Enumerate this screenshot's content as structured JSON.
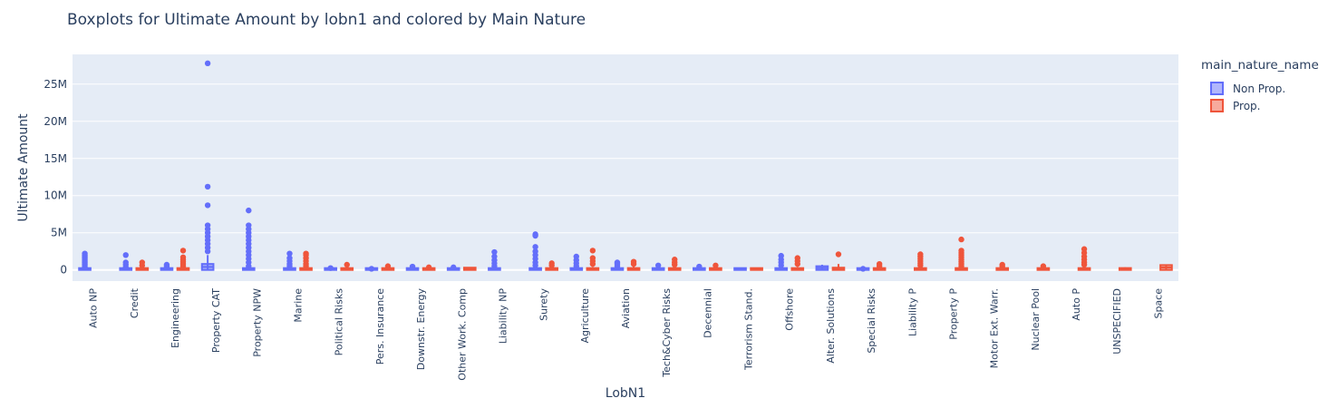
{
  "chart_data": {
    "type": "box",
    "title": "Boxplots for Ultimate Amount by lobn1 and colored by Main Nature",
    "xlabel": "LobN1",
    "ylabel": "Ultimate Amount",
    "ylim": [
      -1500000,
      29000000
    ],
    "yticks": [
      0,
      5000000,
      10000000,
      15000000,
      20000000,
      25000000
    ],
    "ytick_labels": [
      "0",
      "5M",
      "10M",
      "15M",
      "20M",
      "25M"
    ],
    "legend_title": "main_nature_name",
    "legend_position": "right",
    "grid": true,
    "categories": [
      "Auto NP",
      "Credit",
      "Engineering",
      "Property CAT",
      "Property NPW",
      "Marine",
      "Political Risks",
      "Pers. Insurance",
      "Downstr. Energy",
      "Other Work. Comp",
      "Liability NP",
      "Surety",
      "Agriculture",
      "Aviation",
      "Tech&Cyber Risks",
      "Decennial",
      "Terrorism Stand.",
      "Offshore",
      "Alter. Solutions",
      "Special Risks",
      "Liability P",
      "Property P",
      "Motor Ext. Warr.",
      "Nuclear Pool",
      "Auto P",
      "UNSPECIFIED",
      "Space"
    ],
    "series": [
      {
        "name": "Non Prop.",
        "color": "#636efa",
        "boxes": [
          {
            "category": "Auto NP",
            "q1": 0,
            "q3": 50000,
            "upper": 300000,
            "outliers": [
              400000,
              600000,
              800000,
              1000000,
              1200000,
              1400000,
              1600000,
              1800000,
              2000000,
              2200000
            ]
          },
          {
            "category": "Credit",
            "q1": 0,
            "q3": 60000,
            "upper": 200000,
            "outliers": [
              400000,
              700000,
              1000000,
              2000000
            ]
          },
          {
            "category": "Engineering",
            "q1": 0,
            "q3": 60000,
            "upper": 200000,
            "outliers": [
              300000,
              500000,
              700000
            ]
          },
          {
            "category": "Property CAT",
            "q1": 0,
            "q3": 800000,
            "upper": 2000000,
            "outliers": [
              2500000,
              3000000,
              3500000,
              4000000,
              4500000,
              5000000,
              5500000,
              6000000,
              8700000,
              11200000,
              27800000
            ]
          },
          {
            "category": "Property NPW",
            "q1": 0,
            "q3": 50000,
            "upper": 300000,
            "outliers": [
              500000,
              1000000,
              1500000,
              2000000,
              2500000,
              3000000,
              3500000,
              4000000,
              4500000,
              5000000,
              5500000,
              6000000,
              8000000
            ]
          },
          {
            "category": "Marine",
            "q1": 0,
            "q3": 60000,
            "upper": 300000,
            "outliers": [
              500000,
              800000,
              1200000,
              1600000,
              2200000
            ]
          },
          {
            "category": "Political Risks",
            "q1": 0,
            "q3": 50000,
            "upper": 150000,
            "outliers": [
              250000
            ]
          },
          {
            "category": "Pers. Insurance",
            "q1": 0,
            "q3": 30000,
            "upper": 100000,
            "outliers": [
              150000
            ]
          },
          {
            "category": "Downstr. Energy",
            "q1": 0,
            "q3": 50000,
            "upper": 150000,
            "outliers": [
              450000
            ]
          },
          {
            "category": "Other Work. Comp",
            "q1": 0,
            "q3": 50000,
            "upper": 150000,
            "outliers": [
              350000
            ]
          },
          {
            "category": "Liability NP",
            "q1": 0,
            "q3": 60000,
            "upper": 250000,
            "outliers": [
              500000,
              900000,
              1300000,
              1800000,
              2400000
            ]
          },
          {
            "category": "Surety",
            "q1": 0,
            "q3": 60000,
            "upper": 300000,
            "outliers": [
              600000,
              1000000,
              1500000,
              2000000,
              2500000,
              3100000,
              4600000,
              4800000
            ]
          },
          {
            "category": "Agriculture",
            "q1": 0,
            "q3": 60000,
            "upper": 250000,
            "outliers": [
              500000,
              900000,
              1300000,
              1800000
            ]
          },
          {
            "category": "Aviation",
            "q1": 0,
            "q3": 50000,
            "upper": 200000,
            "outliers": [
              500000,
              800000,
              1000000
            ]
          },
          {
            "category": "Tech&Cyber Risks",
            "q1": 0,
            "q3": 60000,
            "upper": 200000,
            "outliers": [
              600000
            ]
          },
          {
            "category": "Decennial",
            "q1": 0,
            "q3": 50000,
            "upper": 200000,
            "outliers": [
              450000
            ]
          },
          {
            "category": "Terrorism Stand.",
            "q1": 0,
            "q3": 20000,
            "upper": 80000,
            "outliers": []
          },
          {
            "category": "Offshore",
            "q1": 0,
            "q3": 60000,
            "upper": 300000,
            "outliers": [
              600000,
              1000000,
              1400000,
              1900000
            ]
          },
          {
            "category": "Alter. Solutions",
            "q1": 0,
            "q3": 500000,
            "upper": 700000,
            "outliers": []
          },
          {
            "category": "Special Risks",
            "q1": 0,
            "q3": 30000,
            "upper": 80000,
            "outliers": [
              150000
            ]
          },
          {
            "category": "Liability P",
            "q1": null,
            "q3": null,
            "upper": null,
            "outliers": []
          },
          {
            "category": "Property P",
            "q1": null,
            "q3": null,
            "upper": null,
            "outliers": []
          },
          {
            "category": "Motor Ext. Warr.",
            "q1": null,
            "q3": null,
            "upper": null,
            "outliers": []
          },
          {
            "category": "Nuclear Pool",
            "q1": null,
            "q3": null,
            "upper": null,
            "outliers": []
          },
          {
            "category": "Auto P",
            "q1": null,
            "q3": null,
            "upper": null,
            "outliers": []
          },
          {
            "category": "UNSPECIFIED",
            "q1": null,
            "q3": null,
            "upper": null,
            "outliers": []
          },
          {
            "category": "Space",
            "q1": null,
            "q3": null,
            "upper": null,
            "outliers": []
          }
        ]
      },
      {
        "name": "Prop.",
        "color": "#ef553b",
        "boxes": [
          {
            "category": "Auto NP",
            "q1": null,
            "q3": null,
            "upper": null,
            "outliers": []
          },
          {
            "category": "Credit",
            "q1": 0,
            "q3": 80000,
            "upper": 300000,
            "outliers": [
              600000,
              1000000
            ]
          },
          {
            "category": "Engineering",
            "q1": 0,
            "q3": 80000,
            "upper": 300000,
            "outliers": [
              500000,
              800000,
              1100000,
              1400000,
              1700000,
              2600000
            ]
          },
          {
            "category": "Property CAT",
            "q1": null,
            "q3": null,
            "upper": null,
            "outliers": []
          },
          {
            "category": "Property NPW",
            "q1": null,
            "q3": null,
            "upper": null,
            "outliers": []
          },
          {
            "category": "Marine",
            "q1": 0,
            "q3": 80000,
            "upper": 300000,
            "outliers": [
              500000,
              800000,
              1200000,
              1600000,
              2000000,
              2200000
            ]
          },
          {
            "category": "Political Risks",
            "q1": 0,
            "q3": 200000,
            "upper": 400000,
            "outliers": [
              700000
            ]
          },
          {
            "category": "Pers. Insurance",
            "q1": 0,
            "q3": 100000,
            "upper": 300000,
            "outliers": [
              500000
            ]
          },
          {
            "category": "Downstr. Energy",
            "q1": 0,
            "q3": 80000,
            "upper": 200000,
            "outliers": [
              350000
            ]
          },
          {
            "category": "Other Work. Comp",
            "q1": 0,
            "q3": 300000,
            "upper": 350000,
            "outliers": []
          },
          {
            "category": "Liability NP",
            "q1": null,
            "q3": null,
            "upper": null,
            "outliers": []
          },
          {
            "category": "Surety",
            "q1": 0,
            "q3": 100000,
            "upper": 300000,
            "outliers": [
              600000,
              900000
            ]
          },
          {
            "category": "Agriculture",
            "q1": 0,
            "q3": 150000,
            "upper": 400000,
            "outliers": [
              800000,
              1200000,
              1600000,
              2600000
            ]
          },
          {
            "category": "Aviation",
            "q1": 0,
            "q3": 250000,
            "upper": 500000,
            "outliers": [
              800000,
              1100000
            ]
          },
          {
            "category": "Tech&Cyber Risks",
            "q1": 0,
            "q3": 150000,
            "upper": 400000,
            "outliers": [
              700000,
              1000000,
              1400000
            ]
          },
          {
            "category": "Decennial",
            "q1": 0,
            "q3": 150000,
            "upper": 300000,
            "outliers": [
              600000
            ]
          },
          {
            "category": "Terrorism Stand.",
            "q1": 0,
            "q3": 80000,
            "upper": 150000,
            "outliers": []
          },
          {
            "category": "Offshore",
            "q1": 0,
            "q3": 150000,
            "upper": 400000,
            "outliers": [
              800000,
              1200000,
              1600000
            ]
          },
          {
            "category": "Alter. Solutions",
            "q1": 0,
            "q3": 300000,
            "upper": 800000,
            "outliers": [
              2100000
            ]
          },
          {
            "category": "Special Risks",
            "q1": 0,
            "q3": 100000,
            "upper": 300000,
            "outliers": [
              500000,
              800000
            ]
          },
          {
            "category": "Liability P",
            "q1": 0,
            "q3": 80000,
            "upper": 300000,
            "outliers": [
              600000,
              900000,
              1200000,
              1500000,
              1800000,
              2100000
            ]
          },
          {
            "category": "Property P",
            "q1": 0,
            "q3": 100000,
            "upper": 300000,
            "outliers": [
              500000,
              800000,
              1100000,
              1400000,
              1700000,
              2000000,
              2300000,
              2600000,
              4100000
            ]
          },
          {
            "category": "Motor Ext. Warr.",
            "q1": 0,
            "q3": 80000,
            "upper": 200000,
            "outliers": [
              450000,
              700000
            ]
          },
          {
            "category": "Nuclear Pool",
            "q1": 0,
            "q3": 80000,
            "upper": 200000,
            "outliers": [
              500000
            ]
          },
          {
            "category": "Auto P",
            "q1": 0,
            "q3": 150000,
            "upper": 400000,
            "outliers": [
              700000,
              1000000,
              1400000,
              1800000,
              2300000,
              2800000
            ]
          },
          {
            "category": "UNSPECIFIED",
            "q1": 0,
            "q3": 250000,
            "upper": 350000,
            "outliers": []
          },
          {
            "category": "Space",
            "q1": 0,
            "q3": 650000,
            "upper": 700000,
            "outliers": []
          }
        ]
      }
    ]
  }
}
